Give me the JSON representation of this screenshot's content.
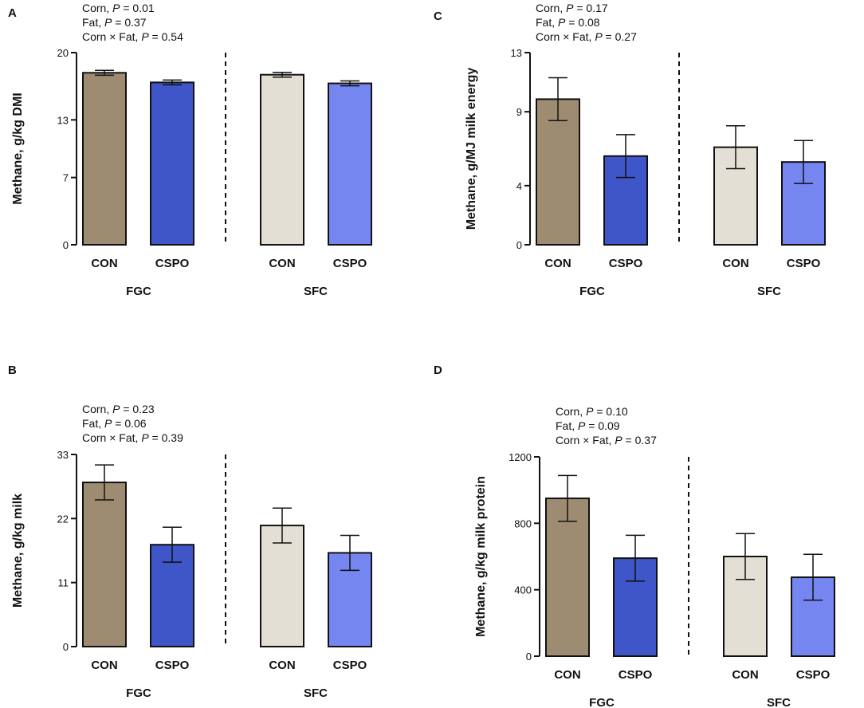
{
  "chart_data": [
    {
      "type": "bar",
      "panel": "A",
      "ylabel": "Methane, g/kg DMI",
      "ylim": [
        0,
        20
      ],
      "yticks": [
        0,
        7,
        13,
        20
      ],
      "categories": [
        "CON",
        "CSPO",
        "CON",
        "CSPO"
      ],
      "groups": [
        "FGC",
        "SFC"
      ],
      "values": [
        17.9,
        16.9,
        17.7,
        16.8
      ],
      "errors": [
        0.25,
        0.25,
        0.25,
        0.25
      ],
      "stats": [
        {
          "label": "Corn, ",
          "p": "P",
          "value": " = 0.01"
        },
        {
          "label": "Fat, ",
          "p": "P",
          "value": " = 0.37"
        },
        {
          "label": "Corn × Fat, ",
          "p": "P",
          "value": " = 0.54"
        }
      ]
    },
    {
      "type": "bar",
      "panel": "B",
      "ylabel": "Methane, g/kg milk",
      "ylim": [
        0,
        33
      ],
      "yticks": [
        0,
        11,
        22,
        33
      ],
      "categories": [
        "CON",
        "CSPO",
        "CON",
        "CSPO"
      ],
      "groups": [
        "FGC",
        "SFC"
      ],
      "values": [
        28.2,
        17.5,
        20.8,
        16.1
      ],
      "errors": [
        3.0,
        3.0,
        3.0,
        3.0
      ],
      "stats": [
        {
          "label": "Corn, ",
          "p": "P",
          "value": " = 0.23"
        },
        {
          "label": "Fat, ",
          "p": "P",
          "value": " = 0.06"
        },
        {
          "label": "Corn × Fat, ",
          "p": "P",
          "value": " = 0.39"
        }
      ]
    },
    {
      "type": "bar",
      "panel": "C",
      "ylabel": "Methane, g/MJ milk energy",
      "ylim": [
        0,
        13
      ],
      "yticks": [
        0,
        4,
        9,
        13
      ],
      "categories": [
        "CON",
        "CSPO",
        "CON",
        "CSPO"
      ],
      "groups": [
        "FGC",
        "SFC"
      ],
      "values": [
        9.85,
        6.0,
        6.6,
        5.6
      ],
      "errors": [
        1.45,
        1.45,
        1.45,
        1.45
      ],
      "stats": [
        {
          "label": "Corn, ",
          "p": "P",
          "value": " = 0.17"
        },
        {
          "label": "Fat, ",
          "p": "P",
          "value": " = 0.08"
        },
        {
          "label": "Corn × Fat, ",
          "p": "P",
          "value": " = 0.27"
        }
      ]
    },
    {
      "type": "bar",
      "panel": "D",
      "ylabel": "Methane, g/kg milk protein",
      "ylim": [
        0,
        1200
      ],
      "yticks": [
        0,
        400,
        800,
        1200
      ],
      "categories": [
        "CON",
        "CSPO",
        "CON",
        "CSPO"
      ],
      "groups": [
        "FGC",
        "SFC"
      ],
      "values": [
        950,
        590,
        600,
        475
      ],
      "errors": [
        138,
        138,
        138,
        138
      ],
      "stats": [
        {
          "label": "Corn, ",
          "p": "P",
          "value": " = 0.10"
        },
        {
          "label": "Fat, ",
          "p": "P",
          "value": " = 0.09"
        },
        {
          "label": "Corn × Fat, ",
          "p": "P",
          "value": " = 0.37"
        }
      ]
    }
  ],
  "bar_colors": [
    "#9e8c72",
    "#3e56c8",
    "#e3dfd4",
    "#7586f0"
  ],
  "axis_color": "#111111"
}
